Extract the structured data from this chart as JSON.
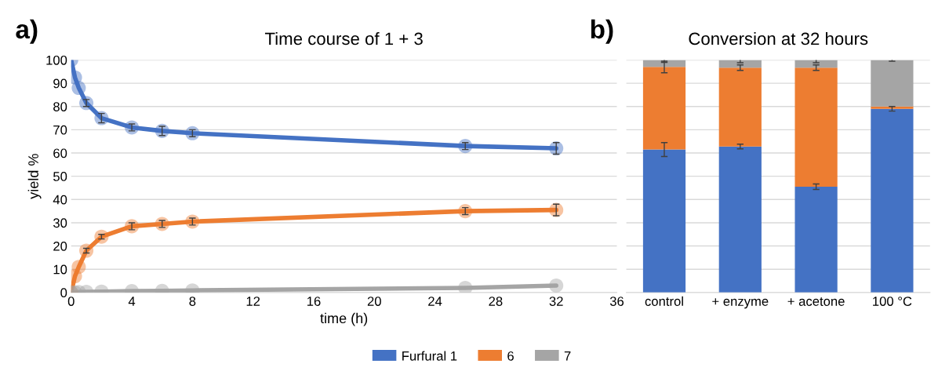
{
  "chart_data": [
    {
      "type": "line",
      "title": "Time course of 1 + 3",
      "xlabel": "time (h)",
      "ylabel": "yield %",
      "annotations": [
        "a)"
      ],
      "x": [
        0,
        0.25,
        0.5,
        1,
        2,
        4,
        6,
        8,
        26,
        32
      ],
      "series": [
        {
          "name": "Furfural 1",
          "color": "#4472c4",
          "values": [
            100,
            92.5,
            88,
            81.5,
            75,
            71,
            69.5,
            68.5,
            63,
            62
          ],
          "errors": [
            null,
            null,
            null,
            1.5,
            2,
            1.5,
            2,
            1.5,
            1.5,
            2.5
          ]
        },
        {
          "name": "6",
          "color": "#ed7d31",
          "values": [
            0,
            7,
            11,
            18,
            24,
            28.5,
            29.5,
            30.5,
            35,
            35.5
          ],
          "errors": [
            null,
            null,
            null,
            1,
            1,
            1.5,
            1.5,
            1.5,
            1.5,
            2.5
          ]
        },
        {
          "name": "7",
          "color": "#a5a5a5",
          "values": [
            0,
            0,
            0.2,
            0.3,
            0.4,
            0.6,
            0.7,
            0.9,
            2,
            3
          ]
        }
      ],
      "xlim": [
        0,
        36
      ],
      "xticks": [
        0,
        4,
        8,
        12,
        16,
        20,
        24,
        28,
        32,
        36
      ],
      "ylim": [
        0,
        100
      ],
      "yticks": [
        0,
        10,
        20,
        30,
        40,
        50,
        60,
        70,
        80,
        90,
        100
      ],
      "grid": "y",
      "marker": "circle",
      "line_style": "solid",
      "legend": "bottom"
    },
    {
      "type": "bar",
      "stacked": true,
      "title": "Conversion at 32 hours",
      "annotations": [
        "b)"
      ],
      "categories": [
        "control",
        "+ enzyme",
        "+ acetone",
        "100 °C"
      ],
      "series": [
        {
          "color": "#4472c4",
          "values": [
            61.5,
            62.8,
            45.5,
            79
          ],
          "errors": [
            3,
            1,
            1.2,
            1
          ]
        },
        {
          "color": "#ed7d31",
          "values": [
            35.5,
            33.9,
            51.2,
            1
          ],
          "errors": [
            2.5,
            1.2,
            1.2,
            null
          ]
        },
        {
          "color": "#a5a5a5",
          "values": [
            3,
            3.3,
            3.3,
            20
          ],
          "errors": [
            1,
            1.2,
            1.2,
            0.5
          ]
        }
      ],
      "ylim": [
        0,
        100
      ],
      "yticks": [
        0,
        10,
        20,
        30,
        40,
        50,
        60,
        70,
        80,
        90,
        100
      ],
      "grid": "y",
      "tick_labels": "x"
    }
  ]
}
